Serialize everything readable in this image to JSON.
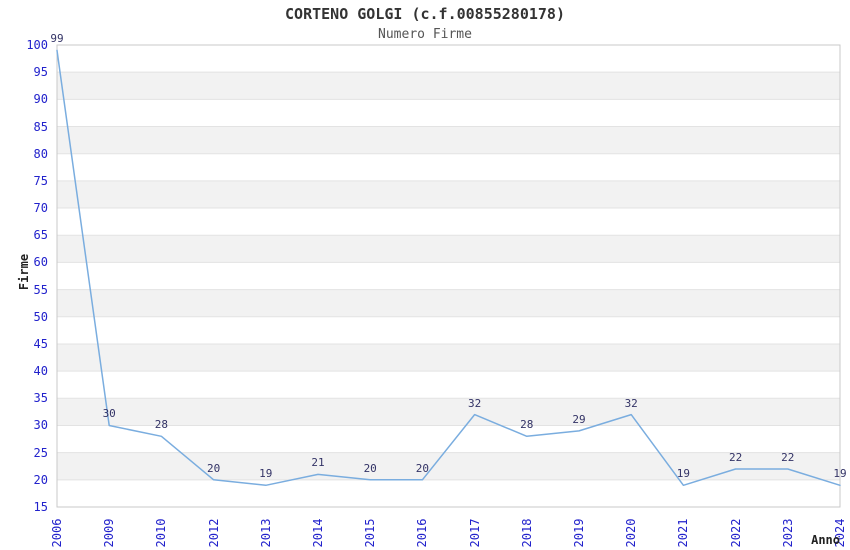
{
  "chart_data": {
    "type": "line",
    "title": "CORTENO GOLGI (c.f.00855280178)",
    "subtitle": "Numero Firme",
    "xlabel": "Anno",
    "ylabel": "Firme",
    "categories": [
      "2006",
      "2009",
      "2010",
      "2012",
      "2013",
      "2014",
      "2015",
      "2016",
      "2017",
      "2018",
      "2019",
      "2020",
      "2021",
      "2022",
      "2023",
      "2024"
    ],
    "values": [
      99,
      30,
      28,
      20,
      19,
      21,
      20,
      20,
      32,
      28,
      29,
      32,
      19,
      22,
      22,
      19
    ],
    "data_labels_visible": true,
    "ylim": [
      15,
      100
    ],
    "ytick_step": 5,
    "legend": "none",
    "grid": "horizontal-alternating-bands",
    "colors": {
      "line": "#7aaddf",
      "tick_label": "#2222cc",
      "data_label": "#333366",
      "band": "#f2f2f2",
      "gridline": "#e3e3e3",
      "plot_border": "#c9c9c9",
      "title": "#333333",
      "subtitle": "#555555",
      "axis_title": "#222222"
    }
  }
}
